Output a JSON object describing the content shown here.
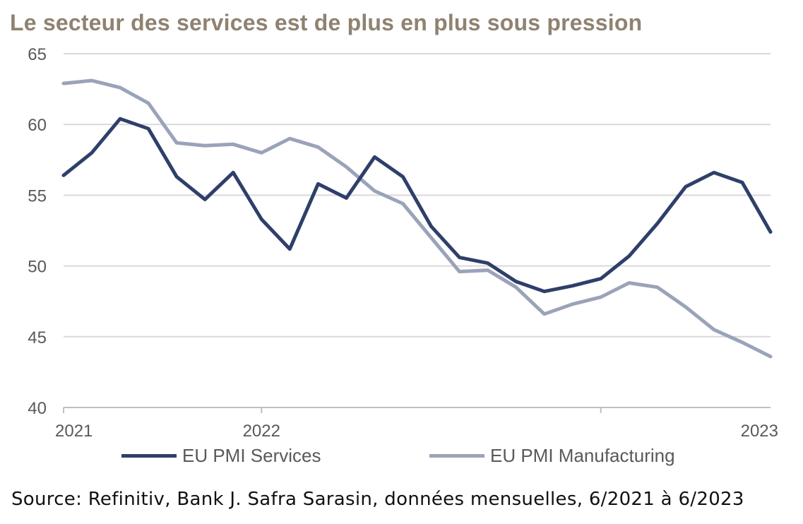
{
  "title": "Le secteur des services est de plus en plus sous pression",
  "source": "Source: Refinitiv, Bank J. Safra Sarasin, données mensuelles, 6/2021 à 6/2023",
  "chart_data": {
    "type": "line",
    "x_tick_labels": [
      "2021",
      "2022",
      "2023"
    ],
    "y_tick_labels": [
      "40",
      "45",
      "50",
      "55",
      "60",
      "65"
    ],
    "ylim": [
      40,
      65
    ],
    "grid": true,
    "legend_position": "bottom",
    "series": [
      {
        "name": "EU PMI Services",
        "color": "#2e3f6a",
        "values": [
          56.4,
          58.0,
          60.4,
          59.7,
          56.3,
          54.7,
          56.6,
          53.3,
          51.2,
          55.8,
          54.8,
          57.7,
          56.3,
          52.8,
          50.6,
          50.2,
          48.9,
          48.2,
          48.6,
          49.1,
          50.7,
          53.0,
          55.6,
          56.6,
          55.9,
          52.4
        ]
      },
      {
        "name": "EU PMI Manufacturing",
        "color": "#9aa3b8",
        "values": [
          62.9,
          63.1,
          62.6,
          61.5,
          58.7,
          58.5,
          58.6,
          58.0,
          59.0,
          58.4,
          57.0,
          55.3,
          54.4,
          52.0,
          49.6,
          49.7,
          48.5,
          46.6,
          47.3,
          47.8,
          48.8,
          48.5,
          47.1,
          45.5,
          44.6,
          43.6
        ]
      }
    ]
  }
}
